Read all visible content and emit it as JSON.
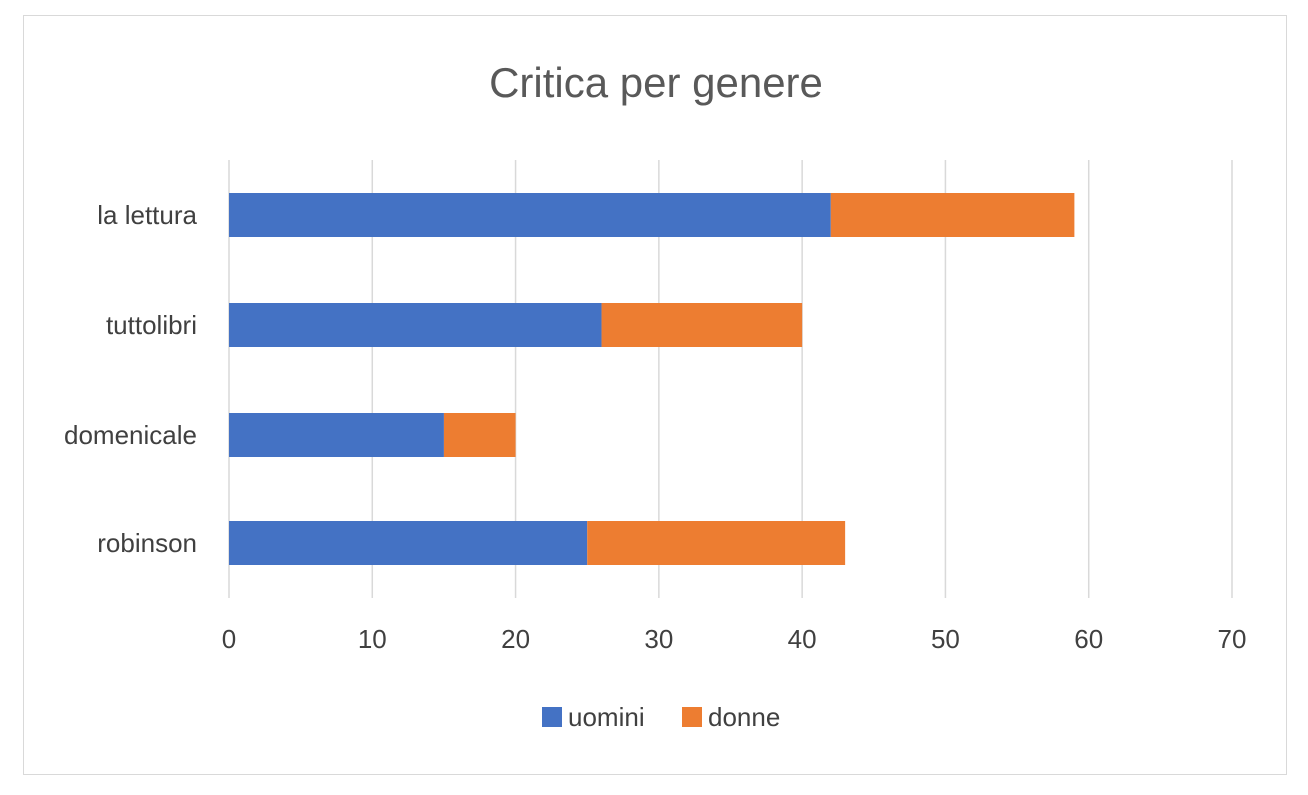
{
  "chart_data": {
    "type": "bar",
    "orientation": "horizontal",
    "stacked": true,
    "title": "Critica per genere",
    "xlabel": "",
    "ylabel": "",
    "categories": [
      "la lettura",
      "tuttolibri",
      "domenicale",
      "robinson"
    ],
    "series": [
      {
        "name": "uomini",
        "values": [
          42,
          26,
          15,
          25
        ],
        "color": "#4472C4"
      },
      {
        "name": "donne",
        "values": [
          17,
          14,
          5,
          18
        ],
        "color": "#ED7D31"
      }
    ],
    "xlim": [
      0,
      70
    ],
    "xticks": [
      "0",
      "10",
      "20",
      "30",
      "40",
      "50",
      "60",
      "70"
    ],
    "grid": true,
    "legend_position": "bottom"
  }
}
